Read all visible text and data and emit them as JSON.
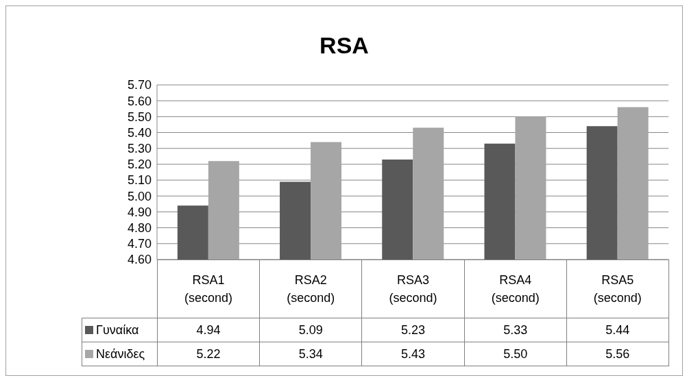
{
  "chart_data": {
    "type": "bar",
    "title": "RSA",
    "categories": [
      "RSA1 (second)",
      "RSA2 (second)",
      "RSA3 (second)",
      "RSA4 (second)",
      "RSA5 (second)"
    ],
    "series": [
      {
        "name": "Γυναίκα",
        "color": "#595959",
        "values": [
          4.94,
          5.09,
          5.23,
          5.33,
          5.44
        ],
        "value_labels": [
          "4.94",
          "5.09",
          "5.23",
          "5.33",
          "5.44"
        ]
      },
      {
        "name": "Νεάνιδες",
        "color": "#a6a6a6",
        "values": [
          5.22,
          5.34,
          5.43,
          5.5,
          5.56
        ],
        "value_labels": [
          "5.22",
          "5.34",
          "5.43",
          "5.50",
          "5.56"
        ]
      }
    ],
    "ylim": [
      4.6,
      5.7
    ],
    "yticks": [
      {
        "value": 4.6,
        "label": "4.60"
      },
      {
        "value": 4.7,
        "label": "4.70"
      },
      {
        "value": 4.8,
        "label": "4.80"
      },
      {
        "value": 4.9,
        "label": "4.90"
      },
      {
        "value": 5.0,
        "label": "5.00"
      },
      {
        "value": 5.1,
        "label": "5.10"
      },
      {
        "value": 5.2,
        "label": "5.20"
      },
      {
        "value": 5.3,
        "label": "5.30"
      },
      {
        "value": 5.4,
        "label": "5.40"
      },
      {
        "value": 5.5,
        "label": "5.50"
      },
      {
        "value": 5.6,
        "label": "5.60"
      },
      {
        "value": 5.7,
        "label": "5.70"
      }
    ],
    "grid": "y",
    "legend": "bottom"
  }
}
